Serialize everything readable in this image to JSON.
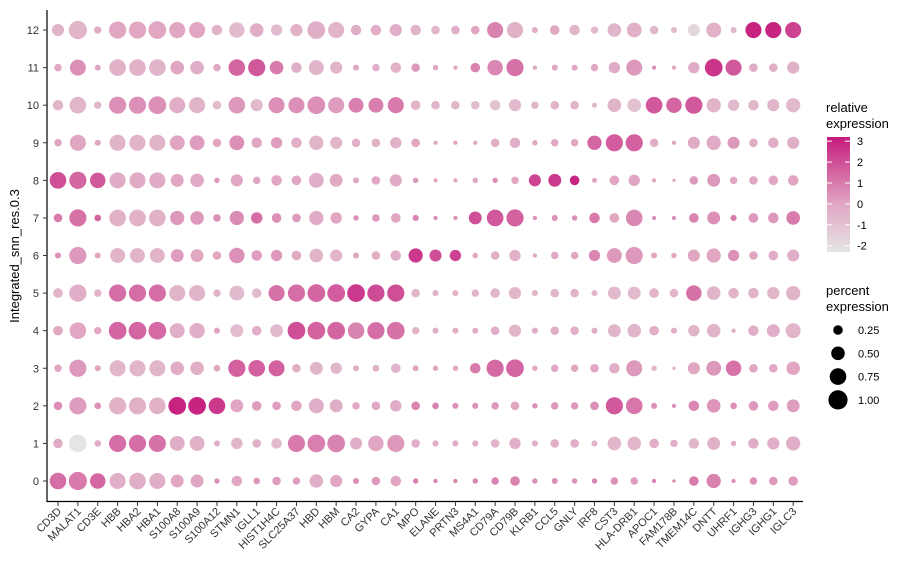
{
  "chart_data": {
    "type": "dotplot",
    "title": "",
    "xlabel": "",
    "ylabel": "Integrated_snn_res.0.3",
    "genes": [
      "CD3D",
      "MALAT1",
      "CD3E",
      "HBB",
      "HBA2",
      "HBA1",
      "S100A8",
      "S100A9",
      "S100A12",
      "STMN1",
      "IGLL1",
      "HIST1H4C",
      "SLC25A37",
      "HBD",
      "HBM",
      "CA2",
      "GYPA",
      "CA1",
      "MPO",
      "ELANE",
      "PRTN3",
      "MS4A1",
      "CD79A",
      "CD79B",
      "KLRB1",
      "CCL5",
      "GNLY",
      "IRF8",
      "CST3",
      "HLA-DRB1",
      "APOC1",
      "FAM178B",
      "TMEM14C",
      "DNTT",
      "UHRF1",
      "IGHG3",
      "IGHG1",
      "IGLC3"
    ],
    "clusters": [
      "0",
      "1",
      "2",
      "3",
      "4",
      "5",
      "6",
      "7",
      "8",
      "9",
      "10",
      "11",
      "12"
    ],
    "color_legend": {
      "title": "relative expression",
      "ticks": [
        "3",
        "2",
        "1",
        "0",
        "-1",
        "-2"
      ],
      "range": [
        -2.3,
        3.2
      ],
      "low": "#e5e5e5",
      "mid": "#e0a6c2",
      "high": "#c51b7d"
    },
    "size_legend": {
      "title": "percent expression",
      "ticks": [
        "0.25",
        "0.50",
        "0.75",
        "1.00"
      ],
      "values": [
        0.25,
        0.5,
        0.75,
        1.0
      ]
    },
    "rows": [
      {
        "cluster": "0",
        "pct": [
          0.75,
          0.9,
          0.65,
          0.7,
          0.75,
          0.7,
          0.45,
          0.45,
          0.08,
          0.3,
          0.12,
          0.2,
          0.15,
          0.5,
          0.4,
          0.1,
          0.2,
          0.3,
          0.08,
          0.05,
          0.05,
          0.08,
          0.15,
          0.25,
          0.08,
          0.1,
          0.08,
          0.08,
          0.15,
          0.15,
          0.05,
          0.03,
          0.25,
          0.55,
          0.05,
          0.15,
          0.2,
          0.25
        ],
        "expr": [
          1.3,
          1.0,
          1.5,
          -0.3,
          -0.3,
          -0.3,
          0,
          0,
          0.5,
          0,
          0.3,
          0.2,
          0.2,
          -0.3,
          0,
          0.5,
          0.3,
          0,
          0.8,
          0.8,
          0.8,
          0.8,
          0.8,
          0.8,
          0.5,
          0.5,
          0.5,
          0.8,
          0.5,
          0.2,
          0.8,
          0.8,
          1.0,
          0.8,
          0.5,
          0.5,
          0.3,
          0.2
        ]
      },
      {
        "cluster": "1",
        "pct": [
          0.25,
          0.85,
          0.12,
          0.8,
          0.8,
          0.8,
          0.6,
          0.6,
          0.1,
          0.35,
          0.2,
          0.3,
          0.8,
          0.85,
          0.85,
          0.4,
          0.65,
          0.8,
          0.2,
          0.1,
          0.1,
          0.1,
          0.2,
          0.35,
          0.1,
          0.2,
          0.2,
          0.1,
          0.5,
          0.5,
          0.25,
          0.15,
          0.3,
          0.45,
          0.08,
          0.3,
          0.4,
          0.55
        ],
        "expr": [
          -0.2,
          -2.3,
          -0.2,
          1.3,
          1.3,
          1.2,
          -0.3,
          -0.4,
          -0.3,
          -0.6,
          -0.4,
          -0.8,
          1.0,
          0.9,
          0.8,
          -0.3,
          0,
          0.3,
          -0.3,
          -0.3,
          -0.3,
          -0.3,
          -0.5,
          -0.3,
          -0.3,
          -0.3,
          -0.3,
          -0.5,
          -0.6,
          -0.6,
          -0.3,
          -0.3,
          -0.6,
          -0.4,
          -0.3,
          -0.3,
          -0.3,
          -0.3
        ]
      },
      {
        "cluster": "2",
        "pct": [
          0.2,
          0.8,
          0.12,
          0.8,
          0.8,
          0.75,
          0.85,
          0.85,
          0.75,
          0.45,
          0.25,
          0.2,
          0.3,
          0.6,
          0.45,
          0.15,
          0.2,
          0.35,
          0.2,
          0.12,
          0.1,
          0.1,
          0.15,
          0.2,
          0.08,
          0.15,
          0.15,
          0.2,
          0.8,
          0.75,
          0.1,
          0.05,
          0.3,
          0.5,
          0.12,
          0.25,
          0.3,
          0.45
        ],
        "expr": [
          0.5,
          0.2,
          0.5,
          -0.4,
          -0.4,
          -0.4,
          3.0,
          3.0,
          2.5,
          0,
          0.2,
          0.2,
          0,
          -0.3,
          -0.3,
          0,
          0,
          -0.2,
          0.8,
          0.8,
          0.5,
          0.5,
          0.3,
          0,
          0.5,
          0.3,
          0.3,
          0.5,
          1.8,
          1.1,
          0.5,
          0.5,
          0.7,
          0.4,
          0.5,
          0.3,
          0.2,
          0.2
        ]
      },
      {
        "cluster": "3",
        "pct": [
          0.15,
          0.8,
          0.1,
          0.7,
          0.7,
          0.7,
          0.5,
          0.5,
          0.12,
          0.8,
          0.75,
          0.7,
          0.2,
          0.45,
          0.35,
          0.1,
          0.12,
          0.25,
          0.1,
          0.08,
          0.08,
          0.3,
          0.8,
          0.85,
          0.08,
          0.15,
          0.15,
          0.2,
          0.3,
          0.7,
          0.08,
          0.03,
          0.4,
          0.6,
          0.65,
          0.2,
          0.2,
          0.5
        ],
        "expr": [
          0,
          0.3,
          0,
          -0.6,
          -0.6,
          -0.6,
          -0.2,
          -0.3,
          0,
          1.6,
          1.6,
          1.6,
          -0.3,
          -0.6,
          -0.6,
          -0.3,
          -0.3,
          -0.5,
          0,
          0,
          0,
          1.0,
          1.4,
          1.5,
          0,
          0,
          0,
          0,
          -0.3,
          0.3,
          -0.5,
          -0.5,
          0,
          0.3,
          1.2,
          0,
          0,
          0
        ]
      },
      {
        "cluster": "4",
        "pct": [
          0.25,
          0.75,
          0.15,
          0.85,
          0.85,
          0.85,
          0.6,
          0.65,
          0.1,
          0.45,
          0.25,
          0.45,
          0.85,
          0.85,
          0.85,
          0.75,
          0.8,
          0.85,
          0.15,
          0.1,
          0.1,
          0.1,
          0.2,
          0.4,
          0.1,
          0.2,
          0.2,
          0.1,
          0.45,
          0.5,
          0.25,
          0.1,
          0.35,
          0.5,
          0.05,
          0.3,
          0.45,
          0.6
        ],
        "expr": [
          0,
          0,
          0,
          1.5,
          1.5,
          1.4,
          -0.3,
          -0.3,
          0,
          -0.8,
          -0.3,
          -0.8,
          2.0,
          1.6,
          1.5,
          0.8,
          1.3,
          1.2,
          -0.5,
          -0.3,
          -0.3,
          -0.3,
          -0.3,
          -0.5,
          -0.3,
          -0.3,
          -0.3,
          -0.3,
          -0.6,
          -0.6,
          -0.3,
          -0.3,
          -0.5,
          -0.5,
          -0.2,
          -0.3,
          -0.3,
          -0.5
        ]
      },
      {
        "cluster": "5",
        "pct": [
          0.25,
          0.8,
          0.15,
          0.8,
          0.8,
          0.8,
          0.7,
          0.7,
          0.15,
          0.6,
          0.25,
          0.7,
          0.8,
          0.85,
          0.85,
          0.85,
          0.8,
          0.8,
          0.2,
          0.1,
          0.1,
          0.15,
          0.25,
          0.4,
          0.1,
          0.2,
          0.2,
          0.1,
          0.45,
          0.45,
          0.25,
          0.2,
          0.65,
          0.5,
          0.3,
          0.3,
          0.4,
          0.55
        ],
        "expr": [
          -0.5,
          -0.3,
          -0.5,
          1.3,
          1.3,
          1.3,
          -0.5,
          -0.5,
          -0.5,
          -0.8,
          -0.8,
          1.2,
          1.3,
          1.5,
          1.7,
          2.5,
          2.1,
          2.0,
          -0.5,
          -0.5,
          -0.5,
          -0.5,
          -0.6,
          -0.6,
          -0.5,
          -0.5,
          -0.5,
          -0.5,
          -0.7,
          -0.7,
          -0.5,
          -0.5,
          1.2,
          -0.5,
          -0.5,
          -0.5,
          -0.5,
          -0.5
        ]
      },
      {
        "cluster": "6",
        "pct": [
          0.1,
          0.8,
          0.1,
          0.6,
          0.6,
          0.6,
          0.45,
          0.45,
          0.2,
          0.65,
          0.3,
          0.35,
          0.25,
          0.5,
          0.4,
          0.1,
          0.2,
          0.3,
          0.55,
          0.4,
          0.35,
          0.08,
          0.2,
          0.35,
          0.05,
          0.15,
          0.15,
          0.35,
          0.6,
          0.8,
          0.1,
          0.08,
          0.4,
          0.55,
          0.35,
          0.2,
          0.25,
          0.4
        ],
        "expr": [
          0.5,
          0.3,
          0,
          -0.5,
          -0.5,
          -0.5,
          0.2,
          0,
          0,
          0.5,
          0.2,
          0.3,
          -0.2,
          -0.5,
          -0.5,
          0,
          -0.3,
          -0.3,
          2.5,
          2.0,
          2.3,
          0,
          -0.3,
          -0.4,
          0,
          0,
          0,
          0.7,
          0.3,
          0.3,
          0,
          0,
          0,
          0,
          0.5,
          0,
          -0.2,
          -0.3
        ]
      },
      {
        "cluster": "7",
        "pct": [
          0.2,
          0.8,
          0.12,
          0.75,
          0.75,
          0.75,
          0.55,
          0.5,
          0.15,
          0.55,
          0.35,
          0.25,
          0.2,
          0.55,
          0.35,
          0.08,
          0.15,
          0.25,
          0.1,
          0.05,
          0.05,
          0.45,
          0.75,
          0.8,
          0.05,
          0.1,
          0.08,
          0.3,
          0.25,
          0.75,
          0.05,
          0.05,
          0.25,
          0.45,
          0.1,
          0.25,
          0.3,
          0.5
        ],
        "expr": [
          1.0,
          1.2,
          1.5,
          -0.4,
          -0.4,
          -0.4,
          0.3,
          0.3,
          0.5,
          0.6,
          1.3,
          0.5,
          0.3,
          -0.2,
          0,
          0.5,
          0.3,
          0,
          0.8,
          0.5,
          0.5,
          2.0,
          1.8,
          1.6,
          0.5,
          0.5,
          0.5,
          1.0,
          0,
          0.7,
          0.5,
          0.5,
          0.8,
          0.5,
          1.0,
          0.3,
          0.3,
          1.0
        ]
      },
      {
        "cluster": "8",
        "pct": [
          0.75,
          0.8,
          0.65,
          0.7,
          0.7,
          0.7,
          0.45,
          0.5,
          0.08,
          0.4,
          0.15,
          0.3,
          0.25,
          0.6,
          0.45,
          0.1,
          0.2,
          0.4,
          0.08,
          0.05,
          0.05,
          0.08,
          0.08,
          0.15,
          0.4,
          0.45,
          0.25,
          0.07,
          0.25,
          0.35,
          0.05,
          0.03,
          0.2,
          0.45,
          0.15,
          0.2,
          0.25,
          0.3
        ],
        "expr": [
          2.0,
          1.5,
          1.8,
          -0.2,
          -0.2,
          -0.2,
          0,
          -0.1,
          0.3,
          0,
          0,
          0,
          0,
          -0.3,
          -0.1,
          0,
          0,
          -0.2,
          0.3,
          0,
          0,
          0,
          0.5,
          0,
          2.2,
          2.5,
          3.0,
          0,
          0,
          0,
          0,
          0,
          0.3,
          0.3,
          0,
          0,
          0,
          0
        ]
      },
      {
        "cluster": "9",
        "pct": [
          0.15,
          0.7,
          0.1,
          0.7,
          0.7,
          0.7,
          0.6,
          0.6,
          0.2,
          0.6,
          0.3,
          0.35,
          0.3,
          0.55,
          0.4,
          0.2,
          0.2,
          0.35,
          0.2,
          0.05,
          0.05,
          0.05,
          0.2,
          0.3,
          0.08,
          0.15,
          0.15,
          0.55,
          0.8,
          0.8,
          0.2,
          0.05,
          0.4,
          0.55,
          0.4,
          0.2,
          0.3,
          0.4
        ],
        "expr": [
          0,
          0,
          0,
          -0.5,
          -0.5,
          -0.5,
          0,
          0.2,
          0,
          0.5,
          0,
          0.2,
          -0.3,
          -0.5,
          -0.5,
          -0.4,
          -0.4,
          -0.4,
          0,
          0,
          0,
          0,
          -0.3,
          -0.3,
          0,
          0,
          0,
          1.5,
          1.7,
          1.6,
          -0.3,
          0,
          -0.2,
          -0.2,
          0.3,
          -0.3,
          -0.3,
          -0.3
        ]
      },
      {
        "cluster": "10",
        "pct": [
          0.3,
          0.75,
          0.15,
          0.8,
          0.8,
          0.85,
          0.7,
          0.7,
          0.2,
          0.75,
          0.4,
          0.7,
          0.7,
          0.85,
          0.7,
          0.6,
          0.6,
          0.7,
          0.25,
          0.2,
          0.2,
          0.2,
          0.3,
          0.4,
          0.15,
          0.2,
          0.2,
          0.07,
          0.5,
          0.5,
          0.75,
          0.65,
          0.8,
          0.55,
          0.35,
          0.3,
          0.4,
          0.55
        ],
        "expr": [
          -0.6,
          -0.6,
          -0.6,
          0.5,
          0.5,
          0.5,
          -0.3,
          -0.5,
          -0.8,
          0.3,
          -0.7,
          0.5,
          0.5,
          0.5,
          0.2,
          0.9,
          0.9,
          1.0,
          -0.6,
          -0.5,
          -0.6,
          -0.8,
          -1.0,
          -0.7,
          -0.6,
          -0.5,
          -0.5,
          -0.5,
          -0.5,
          -1.0,
          1.8,
          1.5,
          1.8,
          -0.5,
          -0.7,
          -0.6,
          -0.6,
          -0.7
        ]
      },
      {
        "cluster": "11",
        "pct": [
          0.15,
          0.7,
          0.1,
          0.75,
          0.75,
          0.75,
          0.5,
          0.5,
          0.15,
          0.75,
          0.8,
          0.5,
          0.3,
          0.6,
          0.4,
          0.1,
          0.15,
          0.3,
          0.2,
          0.08,
          0.05,
          0.25,
          0.65,
          0.8,
          0.05,
          0.1,
          0.1,
          0.15,
          0.35,
          0.7,
          0.05,
          0.05,
          0.35,
          0.85,
          0.7,
          0.2,
          0.2,
          0.4
        ],
        "expr": [
          0,
          0.5,
          0,
          -0.4,
          -0.4,
          -0.5,
          0,
          -0.3,
          0,
          1.5,
          1.8,
          1.0,
          -0.3,
          -0.5,
          -0.5,
          0,
          -0.3,
          -0.4,
          0.3,
          0,
          0,
          0.8,
          0.7,
          1.2,
          0,
          0,
          0,
          0,
          -0.2,
          0.3,
          0.5,
          0,
          -0.2,
          2.6,
          1.8,
          -0.2,
          -0.3,
          -0.4
        ]
      },
      {
        "cluster": "12",
        "pct": [
          0.4,
          0.9,
          0.15,
          0.8,
          0.8,
          0.85,
          0.7,
          0.7,
          0.3,
          0.65,
          0.5,
          0.35,
          0.4,
          0.85,
          0.7,
          0.3,
          0.3,
          0.4,
          0.3,
          0.2,
          0.2,
          0.2,
          0.7,
          0.7,
          0.1,
          0.25,
          0.3,
          0.15,
          0.5,
          0.6,
          0.2,
          0.1,
          0.4,
          0.6,
          0.1,
          0.7,
          0.7,
          0.7
        ],
        "expr": [
          -0.5,
          -0.5,
          -0.3,
          0,
          0,
          0,
          0,
          0,
          -0.5,
          -0.8,
          -0.3,
          -0.8,
          -0.4,
          -0.3,
          -0.5,
          -0.3,
          -0.3,
          -0.3,
          -0.5,
          -0.5,
          -0.3,
          0,
          0.8,
          -0.4,
          -0.3,
          0,
          -0.5,
          -0.7,
          -0.6,
          -0.4,
          -0.7,
          -0.8,
          -1.8,
          -0.4,
          -0.5,
          3.0,
          3.0,
          2.3
        ]
      }
    ]
  }
}
